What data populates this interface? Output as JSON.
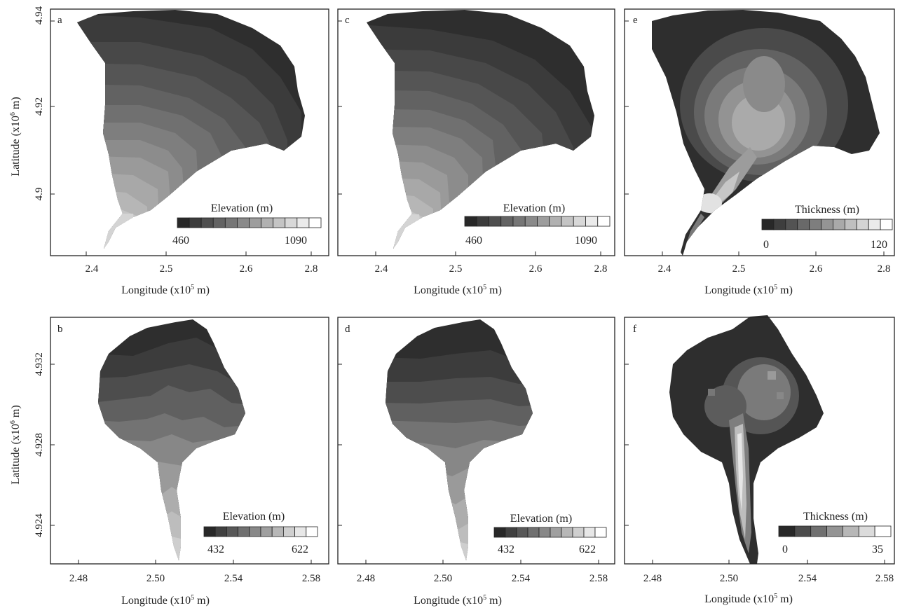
{
  "figure": {
    "panels": [
      {
        "label": "a",
        "xlabel": "Longitude (x10",
        "xlabel_sup": "5",
        "xlabel_tail": " m)",
        "ylabel": "Latitude (x10",
        "ylabel_sup": "6",
        "ylabel_tail": " m)",
        "xticks": [
          "2.4",
          "2.5",
          "2.6",
          "2.8"
        ],
        "yticks": [
          "4.94",
          "4.92",
          "4.9"
        ],
        "colorbar": {
          "title": "Elevation (m)",
          "min": "460",
          "max": "1090",
          "steps": 12
        }
      },
      {
        "label": "c",
        "xlabel": "Longitude (x10",
        "xlabel_sup": "5",
        "xlabel_tail": " m)",
        "xticks": [
          "2.4",
          "2.5",
          "2.6",
          "2.8"
        ],
        "colorbar": {
          "title": "Elevation (m)",
          "min": "460",
          "max": "1090",
          "steps": 12
        }
      },
      {
        "label": "e",
        "xlabel": "Longitude (x10",
        "xlabel_sup": "5",
        "xlabel_tail": " m)",
        "xticks": [
          "2.4",
          "2.5",
          "2.6",
          "2.8"
        ],
        "colorbar": {
          "title": "Thickness (m)",
          "min": "0",
          "max": "120",
          "steps": 11
        }
      },
      {
        "label": "b",
        "xlabel": "Longitude (x10",
        "xlabel_sup": "5",
        "xlabel_tail": " m)",
        "ylabel": "Latitude (x10",
        "ylabel_sup": "6",
        "ylabel_tail": " m)",
        "xticks": [
          "2.48",
          "2.50",
          "2.54",
          "2.58"
        ],
        "yticks": [
          "4.932",
          "4.928",
          "4.924"
        ],
        "colorbar": {
          "title": "Elevation (m)",
          "min": "432",
          "max": "622",
          "steps": 10
        }
      },
      {
        "label": "d",
        "xlabel": "Longitude (x10",
        "xlabel_sup": "5",
        "xlabel_tail": " m)",
        "xticks": [
          "2.48",
          "2.50",
          "2.54",
          "2.58"
        ],
        "colorbar": {
          "title": "Elevation (m)",
          "min": "432",
          "max": "622",
          "steps": 10
        }
      },
      {
        "label": "f",
        "xlabel": "Longitude (x10",
        "xlabel_sup": "5",
        "xlabel_tail": " m)",
        "xticks": [
          "2.48",
          "2.50",
          "2.54",
          "2.58"
        ],
        "colorbar": {
          "title": "Thickness (m)",
          "min": "0",
          "max": "35",
          "steps": 7
        }
      }
    ]
  },
  "chart_data": [
    {
      "panel": "a",
      "type": "heatmap",
      "variable": "Elevation (m)",
      "colormap": "grayscale dark-to-light",
      "range": [
        460,
        1090
      ],
      "levels": 12,
      "xlabel": "Longitude (x10^5 m)",
      "ylabel": "Latitude (x10^6 m)",
      "xticks": [
        2.4,
        2.5,
        2.6,
        2.8
      ],
      "yticks": [
        4.94,
        4.92,
        4.9
      ]
    },
    {
      "panel": "c",
      "type": "heatmap",
      "variable": "Elevation (m)",
      "colormap": "grayscale dark-to-light",
      "range": [
        460,
        1090
      ],
      "levels": 12,
      "xlabel": "Longitude (x10^5 m)",
      "xticks": [
        2.4,
        2.5,
        2.6,
        2.8
      ]
    },
    {
      "panel": "e",
      "type": "heatmap",
      "variable": "Thickness (m)",
      "colormap": "grayscale dark-to-light",
      "range": [
        0,
        120
      ],
      "levels": 11,
      "xlabel": "Longitude (x10^5 m)",
      "xticks": [
        2.4,
        2.5,
        2.6,
        2.8
      ]
    },
    {
      "panel": "b",
      "type": "heatmap",
      "variable": "Elevation (m)",
      "colormap": "grayscale dark-to-light",
      "range": [
        432,
        622
      ],
      "levels": 10,
      "xlabel": "Longitude (x10^5 m)",
      "ylabel": "Latitude (x10^6 m)",
      "xticks": [
        2.48,
        2.5,
        2.54,
        2.58
      ],
      "yticks": [
        4.932,
        4.928,
        4.924
      ]
    },
    {
      "panel": "d",
      "type": "heatmap",
      "variable": "Elevation (m)",
      "colormap": "grayscale dark-to-light",
      "range": [
        432,
        622
      ],
      "levels": 10,
      "xlabel": "Longitude (x10^5 m)",
      "xticks": [
        2.48,
        2.5,
        2.54,
        2.58
      ]
    },
    {
      "panel": "f",
      "type": "heatmap",
      "variable": "Thickness (m)",
      "colormap": "grayscale dark-to-light",
      "range": [
        0,
        35
      ],
      "levels": 7,
      "xlabel": "Longitude (x10^5 m)",
      "xticks": [
        2.48,
        2.5,
        2.54,
        2.58
      ]
    }
  ]
}
